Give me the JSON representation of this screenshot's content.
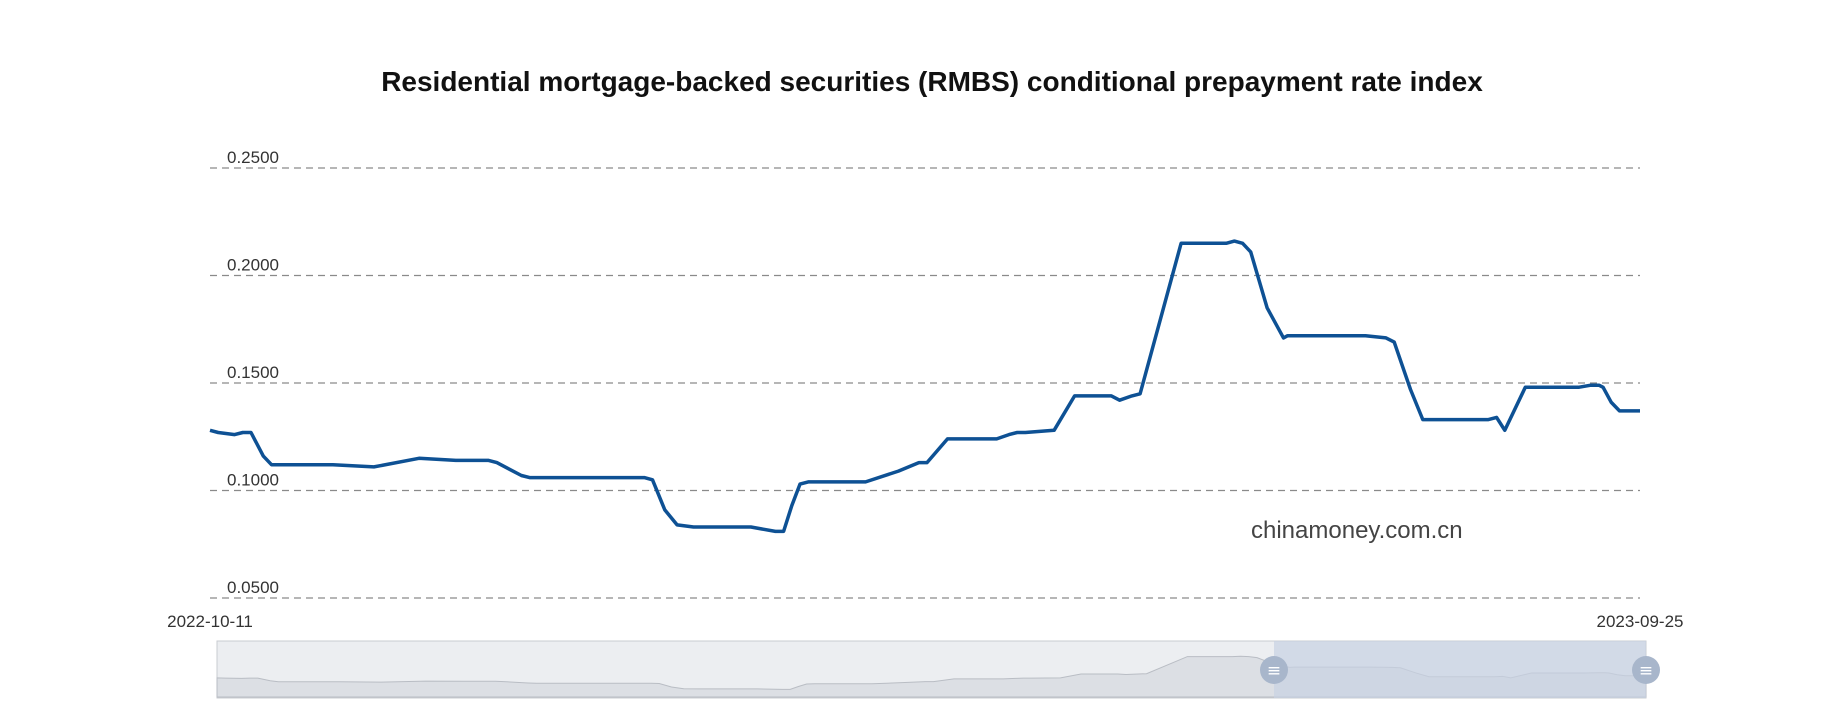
{
  "chart_data": {
    "type": "line",
    "title": "Residential mortgage-backed securities (RMBS) conditional prepayment rate index",
    "xlabel": "",
    "ylabel": "",
    "x_range": [
      "2022-10-11",
      "2023-09-25"
    ],
    "x_labels": [
      "2022-10-11",
      "2023-09-25"
    ],
    "ylim": [
      0.05,
      0.25
    ],
    "y_ticks": [
      "0.2500",
      "0.2000",
      "0.1500",
      "0.1000",
      "0.0500"
    ],
    "grid": "horizontal-dashed",
    "legend": "none",
    "watermark": "chinamoney.com.cn",
    "series": [
      {
        "color": "#0e5194",
        "x": [
          "2022-10-11",
          "2022-10-13",
          "2022-10-17",
          "2022-10-19",
          "2022-10-21",
          "2022-10-24",
          "2022-10-26",
          "2022-10-28",
          "2022-10-31",
          "2022-11-02",
          "2022-11-10",
          "2022-11-20",
          "2022-12-01",
          "2022-12-10",
          "2022-12-14",
          "2022-12-18",
          "2022-12-20",
          "2022-12-26",
          "2022-12-28",
          "2023-01-05",
          "2023-01-15",
          "2023-01-25",
          "2023-01-27",
          "2023-01-30",
          "2023-02-02",
          "2023-02-06",
          "2023-02-10",
          "2023-02-20",
          "2023-02-26",
          "2023-02-28",
          "2023-03-02",
          "2023-03-04",
          "2023-03-06",
          "2023-03-08",
          "2023-03-10",
          "2023-03-15",
          "2023-03-20",
          "2023-03-28",
          "2023-04-02",
          "2023-04-04",
          "2023-04-09",
          "2023-04-12",
          "2023-04-14",
          "2023-04-17",
          "2023-04-21",
          "2023-04-24",
          "2023-04-26",
          "2023-04-28",
          "2023-05-05",
          "2023-05-10",
          "2023-05-13",
          "2023-05-15",
          "2023-05-19",
          "2023-05-21",
          "2023-05-24",
          "2023-05-26",
          "2023-06-05",
          "2023-06-12",
          "2023-06-16",
          "2023-06-18",
          "2023-06-20",
          "2023-06-22",
          "2023-06-26",
          "2023-06-30",
          "2023-07-01",
          "2023-07-03",
          "2023-07-10",
          "2023-07-20",
          "2023-07-25",
          "2023-07-27",
          "2023-07-31",
          "2023-08-03",
          "2023-08-06",
          "2023-08-07",
          "2023-08-10",
          "2023-08-15",
          "2023-08-19",
          "2023-08-21",
          "2023-08-23",
          "2023-08-28",
          "2023-08-31",
          "2023-09-02",
          "2023-09-05",
          "2023-09-07",
          "2023-09-10",
          "2023-09-13",
          "2023-09-15",
          "2023-09-16",
          "2023-09-18",
          "2023-09-20",
          "2023-09-21",
          "2023-09-25"
        ],
        "values": [
          0.128,
          0.127,
          0.126,
          0.127,
          0.127,
          0.116,
          0.112,
          0.112,
          0.112,
          0.112,
          0.112,
          0.111,
          0.115,
          0.114,
          0.114,
          0.114,
          0.113,
          0.107,
          0.106,
          0.106,
          0.106,
          0.106,
          0.105,
          0.091,
          0.084,
          0.083,
          0.083,
          0.083,
          0.081,
          0.081,
          0.093,
          0.103,
          0.104,
          0.104,
          0.104,
          0.104,
          0.104,
          0.109,
          0.113,
          0.113,
          0.124,
          0.124,
          0.124,
          0.124,
          0.124,
          0.126,
          0.127,
          0.127,
          0.128,
          0.144,
          0.144,
          0.144,
          0.144,
          0.142,
          0.144,
          0.145,
          0.215,
          0.215,
          0.215,
          0.216,
          0.215,
          0.211,
          0.185,
          0.171,
          0.172,
          0.172,
          0.172,
          0.172,
          0.171,
          0.169,
          0.147,
          0.133,
          0.133,
          0.133,
          0.133,
          0.133,
          0.133,
          0.134,
          0.128,
          0.148,
          0.148,
          0.148,
          0.148,
          0.148,
          0.148,
          0.149,
          0.149,
          0.148,
          0.141,
          0.137,
          0.137,
          0.137
        ]
      }
    ]
  }
}
